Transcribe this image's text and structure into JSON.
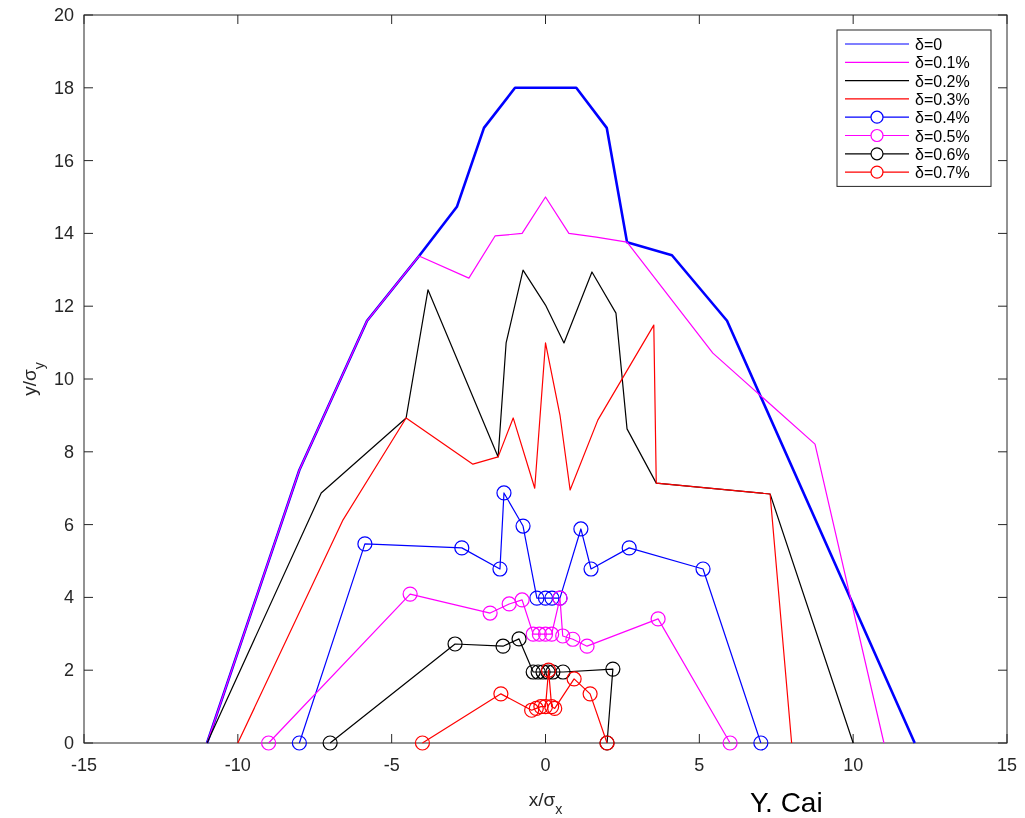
{
  "chart_data": {
    "type": "line",
    "xlabel": "x/σ$_{x}$",
    "ylabel": "y/σ$_{y}$",
    "xlim": [
      -15,
      15
    ],
    "xticks": [
      -15,
      -10,
      -5,
      0,
      5,
      10,
      15
    ],
    "ylim": [
      0,
      20
    ],
    "yticks": [
      0,
      2,
      4,
      6,
      8,
      10,
      12,
      14,
      16,
      18,
      20
    ],
    "grid": false,
    "legend": "top right",
    "line_style": "solid",
    "annotations": [
      "Y. Cai"
    ],
    "series": [
      {
        "name": "δ=0",
        "color": "#0000ff",
        "marker": "none",
        "x": [
          -11,
          -8,
          -5.8,
          -4.11,
          -2.88,
          -2,
          -0.99,
          0,
          1,
          1.99,
          2.65,
          4.11,
          5.9,
          12
        ],
        "values": [
          0,
          7.5,
          11.6,
          13.38,
          14.73,
          16.9,
          18,
          18,
          18,
          16.9,
          13.76,
          13.4,
          11.6,
          0
        ]
      },
      {
        "name": "δ=0.1%",
        "color": "#ff00ff",
        "marker": "none",
        "x": [
          -11,
          -8,
          -5.8,
          -4.11,
          -2.49,
          -1.64,
          -0.76,
          0,
          0.76,
          1.65,
          2.65,
          5.44,
          8.76,
          11
        ],
        "values": [
          0,
          7.5,
          11.6,
          13.38,
          12.77,
          13.93,
          14,
          15,
          14,
          13.9,
          13.76,
          10.71,
          8.21,
          0
        ]
      },
      {
        "name": "δ=0.2%",
        "color": "#000000",
        "marker": "none",
        "x": [
          -11,
          -7.29,
          -4.53,
          -3.82,
          -1.54,
          -1.28,
          -0.73,
          0,
          0.6,
          1.51,
          2.29,
          2.65,
          3.6,
          7.3,
          10
        ],
        "values": [
          0,
          6.87,
          8.93,
          12.45,
          7.86,
          10.99,
          12.99,
          12.03,
          10.99,
          12.94,
          11.81,
          8.63,
          7.14,
          6.84,
          0
        ]
      },
      {
        "name": "δ=0.3%",
        "color": "#ff0000",
        "marker": "none",
        "x": [
          -10,
          -6.58,
          -4.53,
          -2.36,
          -1.54,
          -1.05,
          -0.35,
          0,
          0.47,
          0.8,
          1.7,
          3.52,
          3.6,
          7.3,
          8
        ],
        "values": [
          0,
          6.13,
          8.93,
          7.66,
          7.86,
          8.93,
          7,
          10.99,
          9.01,
          6.95,
          8.87,
          11.48,
          7.14,
          6.84,
          0
        ]
      },
      {
        "name": "δ=0.4%",
        "color": "#0000ff",
        "marker": "circle",
        "x": [
          -8,
          -5.87,
          -2.72,
          -1.48,
          -1.35,
          -0.73,
          -0.28,
          0,
          0.21,
          0.47,
          1.15,
          1.48,
          2.72,
          5.12,
          7
        ],
        "values": [
          0,
          5.47,
          5.36,
          4.78,
          6.87,
          5.96,
          3.98,
          3.98,
          3.98,
          3.98,
          5.88,
          4.78,
          5.36,
          4.78,
          0
        ]
      },
      {
        "name": "δ=0.5%",
        "color": "#ff00ff",
        "marker": "circle",
        "x": [
          -9,
          -4.4,
          -1.8,
          -1.18,
          -0.76,
          -0.4,
          -0.2,
          0,
          0.2,
          0.47,
          0.56,
          0.89,
          1.35,
          3.66,
          6
        ],
        "values": [
          0,
          4.09,
          3.57,
          3.82,
          3.93,
          2.99,
          2.99,
          2.99,
          2.99,
          3.98,
          2.94,
          2.85,
          2.66,
          3.41,
          0
        ]
      },
      {
        "name": "δ=0.6%",
        "color": "#000000",
        "marker": "circle",
        "x": [
          -7,
          -2.94,
          -1.38,
          -0.86,
          -0.4,
          -0.24,
          -0.08,
          0.08,
          0.24,
          0.57,
          2.19,
          2
        ],
        "values": [
          0,
          2.72,
          2.66,
          2.86,
          1.95,
          1.95,
          1.95,
          1.95,
          1.95,
          1.95,
          2.03,
          0
        ]
      },
      {
        "name": "δ=0.7%",
        "color": "#ff0000",
        "marker": "circle",
        "x": [
          -4,
          -1.45,
          -0.45,
          -0.3,
          -0.15,
          0,
          0.1,
          0.2,
          0.3,
          0.93,
          1.45,
          2
        ],
        "values": [
          0,
          1.35,
          0.9,
          0.95,
          1,
          1,
          2,
          1,
          0.95,
          1.76,
          1.35,
          0
        ]
      }
    ]
  }
}
